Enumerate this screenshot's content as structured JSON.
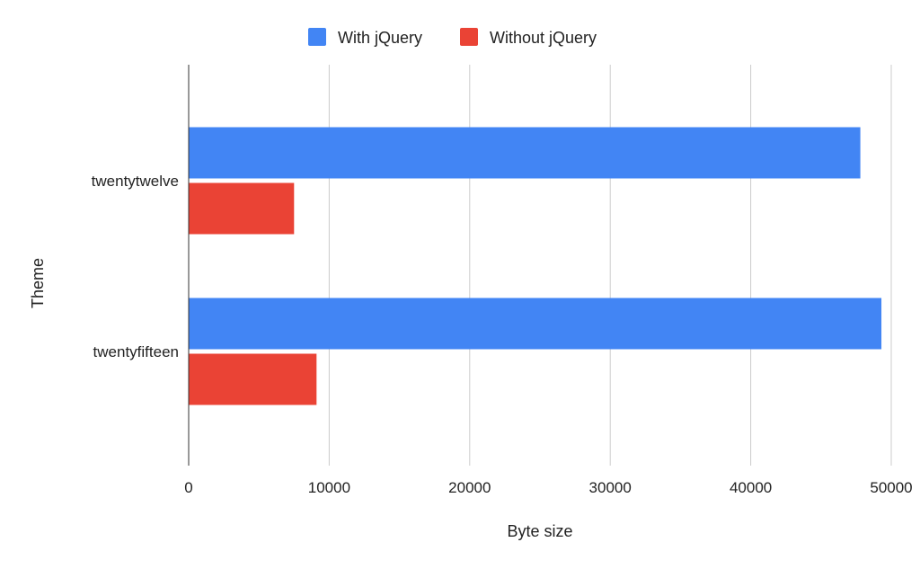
{
  "chart_data": {
    "type": "bar",
    "orientation": "horizontal",
    "categories": [
      "twentytwelve",
      "twentyfifteen"
    ],
    "series": [
      {
        "name": "With jQuery",
        "color": "#4285f4",
        "values": [
          47800,
          49300
        ]
      },
      {
        "name": "Without jQuery",
        "color": "#ea4335",
        "values": [
          7500,
          9100
        ]
      }
    ],
    "xlabel": "Byte size",
    "ylabel": "Theme",
    "xlim": [
      0,
      50000
    ],
    "xticks": [
      "0",
      "10000",
      "20000",
      "30000",
      "40000",
      "50000"
    ],
    "grid": true,
    "legend_position": "top"
  }
}
